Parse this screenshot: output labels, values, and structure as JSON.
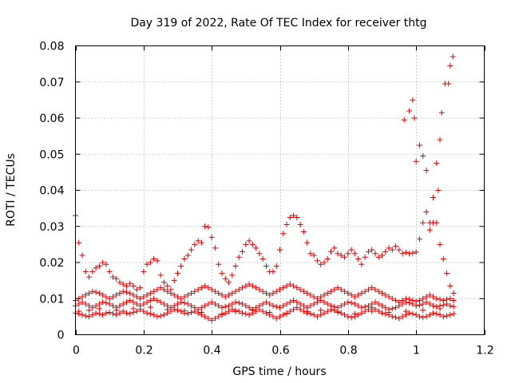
{
  "chart_data": {
    "type": "scatter",
    "title": "Day 319 of 2022, Rate Of TEC Index for receiver thtg",
    "xlabel": "GPS time / hours",
    "ylabel": "ROTI / TECUs",
    "xlim": [
      0,
      1.2
    ],
    "ylim": [
      0,
      0.08
    ],
    "xticks": [
      0,
      0.2,
      0.4,
      0.6,
      0.8,
      1,
      1.2
    ],
    "xtick_labels": [
      "0",
      "0.2",
      "0.4",
      "0.6",
      "0.8",
      "1",
      "1.2"
    ],
    "yticks": [
      0,
      0.01,
      0.02,
      0.03,
      0.04,
      0.05,
      0.06,
      0.07,
      0.08
    ],
    "ytick_labels": [
      "0",
      "0.01",
      "0.02",
      "0.03",
      "0.04",
      "0.05",
      "0.06",
      "0.07",
      "0.08"
    ],
    "grid": true,
    "marker": "plus",
    "color": "#e00000",
    "series": [
      {
        "x": [
          0.0,
          0.01,
          0.02,
          0.03,
          0.04,
          0.05,
          0.06,
          0.07,
          0.08,
          0.09,
          0.1,
          0.11,
          0.12,
          0.13,
          0.14,
          0.15,
          0.16,
          0.17,
          0.18,
          0.19,
          0.2,
          0.21,
          0.22,
          0.23,
          0.24,
          0.25,
          0.26,
          0.27,
          0.28,
          0.29,
          0.3,
          0.31,
          0.32,
          0.33,
          0.34,
          0.35,
          0.36,
          0.37,
          0.38,
          0.39,
          0.4,
          0.41,
          0.42,
          0.43,
          0.44,
          0.45,
          0.46,
          0.47,
          0.48,
          0.49,
          0.5,
          0.51,
          0.52,
          0.53,
          0.54,
          0.55,
          0.56,
          0.57,
          0.58,
          0.59,
          0.6,
          0.61,
          0.62,
          0.63,
          0.64,
          0.65,
          0.66,
          0.67,
          0.68,
          0.69,
          0.7,
          0.71,
          0.72,
          0.73,
          0.74,
          0.75,
          0.76,
          0.77,
          0.78,
          0.79,
          0.8,
          0.81,
          0.82,
          0.83,
          0.84,
          0.85,
          0.86,
          0.87,
          0.88,
          0.89,
          0.9,
          0.91,
          0.92,
          0.93,
          0.94,
          0.95,
          0.96,
          0.97,
          0.98,
          0.99,
          1.0,
          1.01,
          1.02,
          1.03,
          1.04,
          1.05,
          1.06,
          1.07,
          1.08,
          1.09,
          1.1,
          1.11
        ],
        "y": [
          0.006,
          0.0058,
          0.0055,
          0.0052,
          0.005,
          0.0055,
          0.006,
          0.0058,
          0.0055,
          0.006,
          0.0062,
          0.0058,
          0.0055,
          0.006,
          0.0065,
          0.006,
          0.0058,
          0.0062,
          0.0065,
          0.007,
          0.0065,
          0.006,
          0.0058,
          0.0055,
          0.005,
          0.0052,
          0.0055,
          0.006,
          0.0065,
          0.007,
          0.0068,
          0.0065,
          0.006,
          0.0058,
          0.0062,
          0.0065,
          0.006,
          0.0055,
          0.005,
          0.0045,
          0.004,
          0.0045,
          0.005,
          0.0055,
          0.006,
          0.0065,
          0.007,
          0.0068,
          0.0065,
          0.006,
          0.0058,
          0.0055,
          0.006,
          0.0065,
          0.007,
          0.0065,
          0.006,
          0.0055,
          0.005,
          0.0045,
          0.005,
          0.0055,
          0.006,
          0.0065,
          0.007,
          0.0075,
          0.007,
          0.0065,
          0.006,
          0.0058,
          0.0055,
          0.005,
          0.0055,
          0.006,
          0.0065,
          0.007,
          0.0068,
          0.0065,
          0.006,
          0.0055,
          0.005,
          0.0048,
          0.005,
          0.0055,
          0.006,
          0.0065,
          0.007,
          0.0075,
          0.007,
          0.0065,
          0.006,
          0.0058,
          0.0055,
          0.005,
          0.0048,
          0.0045,
          0.005,
          0.0055,
          0.006,
          0.0058,
          0.0055,
          0.005,
          0.0048,
          0.005,
          0.0055,
          0.006,
          0.0058,
          0.0055,
          0.005,
          0.0052,
          0.0055,
          0.0058
        ]
      },
      {
        "x": [
          0.0,
          0.01,
          0.02,
          0.03,
          0.04,
          0.05,
          0.06,
          0.07,
          0.08,
          0.09,
          0.1,
          0.11,
          0.12,
          0.13,
          0.14,
          0.15,
          0.16,
          0.17,
          0.18,
          0.19,
          0.2,
          0.21,
          0.22,
          0.23,
          0.24,
          0.25,
          0.26,
          0.27,
          0.28,
          0.29,
          0.3,
          0.31,
          0.32,
          0.33,
          0.34,
          0.35,
          0.36,
          0.37,
          0.38,
          0.39,
          0.4,
          0.41,
          0.42,
          0.43,
          0.44,
          0.45,
          0.46,
          0.47,
          0.48,
          0.49,
          0.5,
          0.51,
          0.52,
          0.53,
          0.54,
          0.55,
          0.56,
          0.57,
          0.58,
          0.59,
          0.6,
          0.61,
          0.62,
          0.63,
          0.64,
          0.65,
          0.66,
          0.67,
          0.68,
          0.69,
          0.7,
          0.71,
          0.72,
          0.73,
          0.74,
          0.75,
          0.76,
          0.77,
          0.78,
          0.79,
          0.8,
          0.81,
          0.82,
          0.83,
          0.84,
          0.85,
          0.86,
          0.87,
          0.88,
          0.89,
          0.9,
          0.91,
          0.92,
          0.93,
          0.94,
          0.95,
          0.96,
          0.97,
          0.98,
          0.99,
          1.0,
          1.01,
          1.02,
          1.03,
          1.04,
          1.05,
          1.06,
          1.07,
          1.08,
          1.09,
          1.1,
          1.11
        ],
        "y": [
          0.008,
          0.0085,
          0.009,
          0.0085,
          0.008,
          0.0075,
          0.008,
          0.0085,
          0.009,
          0.0088,
          0.0085,
          0.008,
          0.0075,
          0.008,
          0.0085,
          0.009,
          0.0095,
          0.009,
          0.0085,
          0.008,
          0.0085,
          0.009,
          0.0095,
          0.01,
          0.0095,
          0.009,
          0.0085,
          0.008,
          0.0075,
          0.008,
          0.0085,
          0.009,
          0.0088,
          0.0085,
          0.008,
          0.0075,
          0.007,
          0.0075,
          0.008,
          0.0085,
          0.009,
          0.0085,
          0.008,
          0.0075,
          0.0078,
          0.008,
          0.0085,
          0.009,
          0.0088,
          0.0085,
          0.008,
          0.0075,
          0.007,
          0.0075,
          0.008,
          0.0085,
          0.009,
          0.0085,
          0.008,
          0.0078,
          0.0075,
          0.008,
          0.0085,
          0.009,
          0.0095,
          0.009,
          0.0085,
          0.008,
          0.0075,
          0.008,
          0.0085,
          0.009,
          0.0095,
          0.009,
          0.0085,
          0.008,
          0.0078,
          0.0075,
          0.008,
          0.0085,
          0.009,
          0.0088,
          0.0085,
          0.008,
          0.0075,
          0.0078,
          0.008,
          0.0085,
          0.009,
          0.0085,
          0.008,
          0.0075,
          0.007,
          0.0072,
          0.0075,
          0.008,
          0.0085,
          0.009,
          0.0088,
          0.0085,
          0.008,
          0.0082,
          0.0085,
          0.009,
          0.0085,
          0.008,
          0.0078,
          0.008,
          0.0082,
          0.0085,
          0.008,
          0.0078
        ]
      },
      {
        "x": [
          0.0,
          0.01,
          0.02,
          0.03,
          0.04,
          0.05,
          0.06,
          0.07,
          0.08,
          0.09,
          0.1,
          0.11,
          0.12,
          0.13,
          0.14,
          0.15,
          0.16,
          0.17,
          0.18,
          0.19,
          0.2,
          0.21,
          0.22,
          0.23,
          0.24,
          0.25,
          0.26,
          0.27,
          0.28,
          0.29,
          0.3,
          0.31,
          0.32,
          0.33,
          0.34,
          0.35,
          0.36,
          0.37,
          0.38,
          0.39,
          0.4,
          0.41,
          0.42,
          0.43,
          0.44,
          0.45,
          0.46,
          0.47,
          0.48,
          0.49,
          0.5,
          0.51,
          0.52,
          0.53,
          0.54,
          0.55,
          0.56,
          0.57,
          0.58,
          0.59,
          0.6,
          0.61,
          0.62,
          0.63,
          0.64,
          0.65,
          0.66,
          0.67,
          0.68,
          0.69,
          0.7,
          0.71,
          0.72,
          0.73,
          0.74,
          0.75,
          0.76,
          0.77,
          0.78,
          0.79,
          0.8,
          0.81,
          0.82,
          0.83,
          0.84,
          0.85,
          0.86,
          0.87,
          0.88,
          0.89,
          0.9,
          0.91,
          0.92,
          0.93,
          0.94,
          0.95,
          0.96,
          0.97,
          0.98,
          0.99,
          1.0,
          1.01,
          1.02,
          1.03,
          1.04,
          1.05,
          1.06,
          1.07,
          1.08,
          1.09,
          1.1,
          1.11
        ],
        "y": [
          0.0095,
          0.01,
          0.0105,
          0.011,
          0.0115,
          0.012,
          0.0118,
          0.0115,
          0.011,
          0.0105,
          0.01,
          0.0105,
          0.011,
          0.0115,
          0.012,
          0.0118,
          0.0115,
          0.011,
          0.0105,
          0.01,
          0.0105,
          0.011,
          0.0115,
          0.012,
          0.0125,
          0.013,
          0.0125,
          0.012,
          0.0115,
          0.011,
          0.0105,
          0.01,
          0.0105,
          0.011,
          0.0115,
          0.012,
          0.0125,
          0.013,
          0.0135,
          0.013,
          0.0125,
          0.012,
          0.0115,
          0.011,
          0.0105,
          0.011,
          0.0115,
          0.012,
          0.0125,
          0.013,
          0.0135,
          0.014,
          0.0135,
          0.013,
          0.0125,
          0.012,
          0.0115,
          0.011,
          0.0115,
          0.012,
          0.0125,
          0.013,
          0.0135,
          0.014,
          0.0135,
          0.013,
          0.0125,
          0.012,
          0.0115,
          0.011,
          0.0105,
          0.01,
          0.0105,
          0.011,
          0.0115,
          0.012,
          0.0125,
          0.013,
          0.0125,
          0.012,
          0.0115,
          0.011,
          0.0105,
          0.011,
          0.0115,
          0.012,
          0.0125,
          0.013,
          0.0125,
          0.012,
          0.0115,
          0.011,
          0.0105,
          0.01,
          0.0095,
          0.009,
          0.0095,
          0.01,
          0.0098,
          0.0095,
          0.0092,
          0.0095,
          0.01,
          0.0105,
          0.011,
          0.0105,
          0.01,
          0.0098,
          0.0095,
          0.0098,
          0.01,
          0.0095
        ]
      },
      {
        "x": [
          0.0,
          0.01,
          0.02,
          0.03,
          0.04,
          0.05,
          0.06,
          0.07,
          0.08,
          0.09,
          0.1,
          0.11,
          0.12,
          0.13,
          0.14,
          0.15,
          0.16,
          0.17,
          0.18,
          0.19,
          0.2,
          0.21,
          0.22,
          0.23,
          0.24,
          0.25,
          0.26,
          0.27,
          0.28,
          0.29,
          0.3,
          0.31,
          0.32,
          0.33,
          0.34,
          0.35,
          0.36,
          0.37,
          0.38,
          0.39,
          0.4,
          0.41,
          0.42,
          0.43,
          0.44,
          0.45,
          0.46,
          0.47,
          0.48,
          0.49,
          0.5,
          0.51,
          0.52,
          0.53,
          0.54,
          0.55,
          0.56,
          0.57,
          0.58,
          0.59,
          0.6,
          0.61,
          0.62,
          0.63,
          0.64,
          0.65,
          0.66,
          0.67,
          0.68,
          0.69,
          0.7,
          0.71,
          0.72,
          0.73,
          0.74,
          0.75,
          0.76,
          0.77,
          0.78,
          0.79,
          0.8,
          0.81,
          0.82,
          0.83,
          0.84,
          0.85,
          0.86,
          0.87,
          0.88,
          0.89,
          0.9,
          0.91,
          0.92,
          0.93,
          0.94,
          0.95,
          0.96,
          0.97,
          0.98,
          0.99,
          1.0,
          1.01,
          1.02,
          1.03,
          1.04,
          1.05,
          1.06,
          1.07,
          1.08,
          1.09,
          1.1,
          1.11
        ],
        "y": [
          0.033,
          0.0255,
          0.022,
          0.0175,
          0.016,
          0.0175,
          0.0185,
          0.019,
          0.02,
          0.0195,
          0.0175,
          0.016,
          0.0155,
          0.0145,
          0.014,
          0.0135,
          0.0142,
          0.0135,
          0.0125,
          0.013,
          0.0175,
          0.0195,
          0.02,
          0.021,
          0.0205,
          0.0165,
          0.0145,
          0.0135,
          0.0125,
          0.015,
          0.017,
          0.019,
          0.021,
          0.022,
          0.0235,
          0.025,
          0.026,
          0.0255,
          0.03,
          0.0298,
          0.027,
          0.024,
          0.0195,
          0.017,
          0.0155,
          0.0145,
          0.0165,
          0.019,
          0.0215,
          0.023,
          0.025,
          0.026,
          0.025,
          0.024,
          0.0225,
          0.021,
          0.019,
          0.0175,
          0.0175,
          0.019,
          0.0235,
          0.028,
          0.0305,
          0.0325,
          0.033,
          0.0325,
          0.0305,
          0.0285,
          0.0255,
          0.0225,
          0.022,
          0.0205,
          0.0195,
          0.02,
          0.021,
          0.023,
          0.024,
          0.0225,
          0.022,
          0.0215,
          0.0225,
          0.0235,
          0.0225,
          0.021,
          0.0195,
          0.0215,
          0.023,
          0.0235,
          0.0225,
          0.0215,
          0.022,
          0.023,
          0.024,
          0.0235,
          0.0245,
          0.0235,
          0.0225,
          0.0228,
          0.0225,
          0.0226,
          0.0229,
          0.0265,
          0.031,
          0.034,
          0.031,
          0.031,
          0.031,
          0.025,
          0.021,
          0.017,
          0.0135,
          0.0115
        ]
      },
      {
        "x": [
          0.965,
          0.98,
          0.99,
          0.995,
          1.0,
          1.01,
          1.02,
          1.03,
          1.04,
          1.05,
          1.06,
          1.065,
          1.07,
          1.075,
          1.085,
          1.095,
          1.1,
          1.108
        ],
        "y": [
          0.0595,
          0.062,
          0.065,
          0.06,
          0.048,
          0.0525,
          0.0495,
          0.0455,
          0.029,
          0.038,
          0.0475,
          0.04,
          0.054,
          0.0615,
          0.0695,
          0.0695,
          0.0745,
          0.077
        ]
      },
      {
        "x": [
          0.01,
          0.04,
          0.07,
          0.12,
          0.17,
          0.22,
          0.27,
          0.32,
          0.37,
          0.43,
          0.47,
          0.52,
          0.57,
          0.62,
          0.68,
          0.72,
          0.77,
          0.82,
          0.87,
          0.92,
          0.97,
          1.02,
          1.07
        ],
        "y": [
          0.0065,
          0.0068,
          0.0072,
          0.0068,
          0.0072,
          0.0076,
          0.007,
          0.0066,
          0.0062,
          0.0058,
          0.0064,
          0.0068,
          0.0062,
          0.0058,
          0.0064,
          0.0068,
          0.0062,
          0.0058,
          0.0065,
          0.0062,
          0.0065,
          0.0068,
          0.0072
        ]
      }
    ]
  }
}
